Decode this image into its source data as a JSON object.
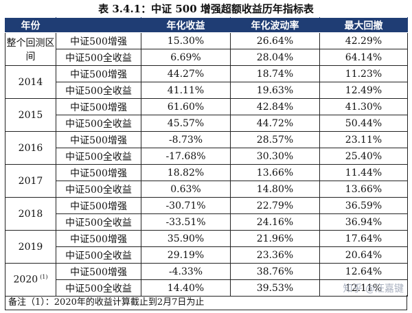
{
  "title": "表 3.4.1：中证 500 增强超额收益历年指标表",
  "headers": [
    "年份",
    "",
    "年化收益",
    "年化波动率",
    "最大回撤"
  ],
  "groups": [
    {
      "year": "整个回测区间",
      "sup": "",
      "rows": [
        [
          "中证500增强",
          "15.30%",
          "26.64%",
          "42.29%"
        ],
        [
          "中证500全收益",
          "6.69%",
          "28.04%",
          "64.14%"
        ]
      ]
    },
    {
      "year": "2014",
      "sup": "",
      "rows": [
        [
          "中证500增强",
          "44.27%",
          "18.74%",
          "11.23%"
        ],
        [
          "中证500全收益",
          "41.11%",
          "19.63%",
          "12.49%"
        ]
      ]
    },
    {
      "year": "2015",
      "sup": "",
      "rows": [
        [
          "中证500增强",
          "61.60%",
          "42.84%",
          "41.30%"
        ],
        [
          "中证500全收益",
          "45.57%",
          "44.72%",
          "50.44%"
        ]
      ]
    },
    {
      "year": "2016",
      "sup": "",
      "rows": [
        [
          "中证500增强",
          "-8.73%",
          "28.57%",
          "23.11%"
        ],
        [
          "中证500全收益",
          "-17.68%",
          "30.30%",
          "25.40%"
        ]
      ]
    },
    {
      "year": "2017",
      "sup": "",
      "rows": [
        [
          "中证500增强",
          "18.82%",
          "13.66%",
          "11.44%"
        ],
        [
          "中证500全收益",
          "0.63%",
          "14.80%",
          "13.66%"
        ]
      ]
    },
    {
      "year": "2018",
      "sup": "",
      "rows": [
        [
          "中证500增强",
          "-30.71%",
          "22.79%",
          "36.59%"
        ],
        [
          "中证500全收益",
          "-33.51%",
          "24.16%",
          "36.94%"
        ]
      ]
    },
    {
      "year": "2019",
      "sup": "",
      "rows": [
        [
          "中证500增强",
          "35.90%",
          "21.96%",
          "17.64%"
        ],
        [
          "中证500全收益",
          "29.19%",
          "23.36%",
          "20.64%"
        ]
      ]
    },
    {
      "year": "2020",
      "sup": "(1)",
      "rows": [
        [
          "中证500增强",
          "-4.33%",
          "38.76%",
          "12.64%"
        ],
        [
          "中证500全收益",
          "14.40%",
          "39.53%",
          "12.11%"
        ]
      ]
    }
  ],
  "note": "备注（1）：2020年的收益计算截止到2月7日为止",
  "watermark": "知乎 @汪嘉键"
}
